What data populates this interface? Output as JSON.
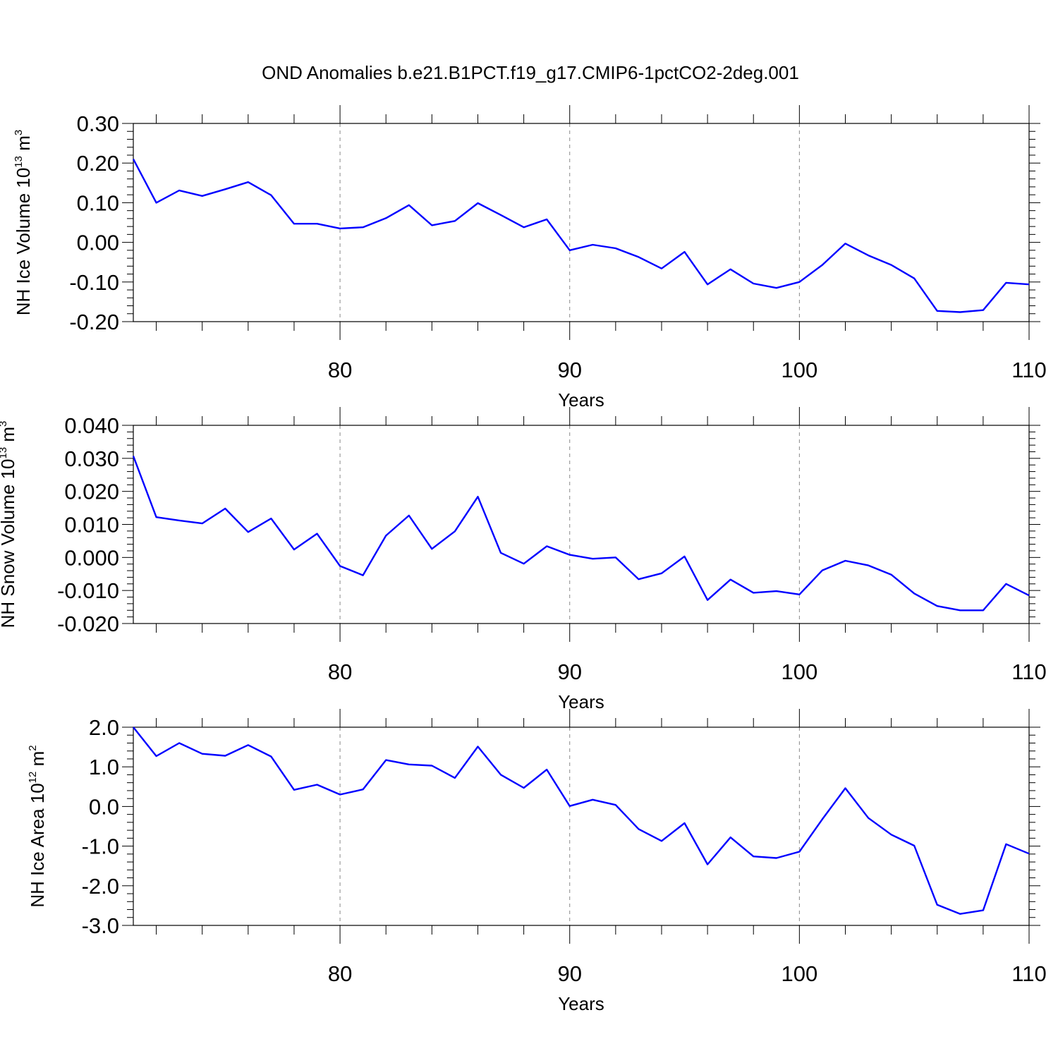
{
  "title": "OND Anomalies b.e21.B1PCT.f19_g17.CMIP6-1pctCO2-2deg.001",
  "colors": {
    "line": "#0000ff",
    "axis": "#000000",
    "grid": "#888888"
  },
  "chart_data": [
    {
      "type": "line",
      "xlabel": "Years",
      "ylabel": {
        "text": "NH Ice Volume 10",
        "exp": "13",
        "unit": " m",
        "unit_exp": "3"
      },
      "xlim": [
        71,
        110
      ],
      "ylim": [
        -0.2,
        0.3
      ],
      "xticks": [
        80,
        90,
        100,
        110
      ],
      "yticks": [
        "0.30",
        "0.20",
        "0.10",
        "0.00",
        "-0.10",
        "-0.20"
      ],
      "ytick_values": [
        0.3,
        0.2,
        0.1,
        0.0,
        -0.1,
        -0.2
      ],
      "grid_x": [
        80,
        90,
        100
      ],
      "series": [
        {
          "name": "NH Ice Volume",
          "x": [
            71,
            72,
            73,
            74,
            75,
            76,
            77,
            78,
            79,
            80,
            81,
            82,
            83,
            84,
            85,
            86,
            87,
            88,
            89,
            90,
            91,
            92,
            93,
            94,
            95,
            96,
            97,
            98,
            99,
            100,
            101,
            102,
            103,
            104,
            105,
            106,
            107,
            108,
            109,
            110
          ],
          "values": [
            0.21,
            0.1,
            0.131,
            0.117,
            0.134,
            0.152,
            0.119,
            0.047,
            0.047,
            0.035,
            0.038,
            0.061,
            0.094,
            0.043,
            0.054,
            0.099,
            0.069,
            0.038,
            0.058,
            -0.02,
            -0.006,
            -0.015,
            -0.037,
            -0.066,
            -0.024,
            -0.106,
            -0.068,
            -0.104,
            -0.115,
            -0.1,
            -0.057,
            -0.003,
            -0.033,
            -0.057,
            -0.091,
            -0.173,
            -0.176,
            -0.171,
            -0.102,
            -0.106
          ]
        }
      ]
    },
    {
      "type": "line",
      "xlabel": "Years",
      "ylabel": {
        "text": "NH Snow Volume 10",
        "exp": "13",
        "unit": " m",
        "unit_exp": "3"
      },
      "xlim": [
        71,
        110
      ],
      "ylim": [
        -0.02,
        0.04
      ],
      "xticks": [
        80,
        90,
        100,
        110
      ],
      "yticks": [
        "0.040",
        "0.030",
        "0.020",
        "0.010",
        "0.000",
        "-0.010",
        "-0.020"
      ],
      "ytick_values": [
        0.04,
        0.03,
        0.02,
        0.01,
        0.0,
        -0.01,
        -0.02
      ],
      "grid_x": [
        80,
        90,
        100
      ],
      "series": [
        {
          "name": "NH Snow Volume",
          "x": [
            71,
            72,
            73,
            74,
            75,
            76,
            77,
            78,
            79,
            80,
            81,
            82,
            83,
            84,
            85,
            86,
            87,
            88,
            89,
            90,
            91,
            92,
            93,
            94,
            95,
            96,
            97,
            98,
            99,
            100,
            101,
            102,
            103,
            104,
            105,
            106,
            107,
            108,
            109,
            110
          ],
          "values": [
            0.0307,
            0.0122,
            0.0112,
            0.0103,
            0.0148,
            0.0077,
            0.0118,
            0.0024,
            0.0072,
            -0.0026,
            -0.0054,
            0.0066,
            0.0127,
            0.0026,
            0.0079,
            0.0184,
            0.0014,
            -0.0019,
            0.0034,
            0.0008,
            -0.0004,
            0.0,
            -0.0066,
            -0.0048,
            0.0003,
            -0.0129,
            -0.0067,
            -0.0107,
            -0.0102,
            -0.0112,
            -0.0039,
            -0.001,
            -0.0024,
            -0.0052,
            -0.0109,
            -0.0147,
            -0.016,
            -0.016,
            -0.008,
            -0.0115
          ]
        }
      ]
    },
    {
      "type": "line",
      "xlabel": "Years",
      "ylabel": {
        "text": "NH Ice Area 10",
        "exp": "12",
        "unit": " m",
        "unit_exp": "2"
      },
      "xlim": [
        71,
        110
      ],
      "ylim": [
        -3.0,
        2.0
      ],
      "xticks": [
        80,
        90,
        100,
        110
      ],
      "yticks": [
        "2.0",
        "1.0",
        "0.0",
        "-1.0",
        "-2.0",
        "-3.0"
      ],
      "ytick_values": [
        2.0,
        1.0,
        0.0,
        -1.0,
        -2.0,
        -3.0
      ],
      "grid_x": [
        80,
        90,
        100
      ],
      "series": [
        {
          "name": "NH Ice Area",
          "x": [
            71,
            72,
            73,
            74,
            75,
            76,
            77,
            78,
            79,
            80,
            81,
            82,
            83,
            84,
            85,
            86,
            87,
            88,
            89,
            90,
            91,
            92,
            93,
            94,
            95,
            96,
            97,
            98,
            99,
            100,
            101,
            102,
            103,
            104,
            105,
            106,
            107,
            108,
            109,
            110
          ],
          "values": [
            2.0,
            1.27,
            1.6,
            1.33,
            1.28,
            1.55,
            1.26,
            0.42,
            0.55,
            0.3,
            0.43,
            1.17,
            1.06,
            1.03,
            0.72,
            1.51,
            0.8,
            0.47,
            0.93,
            0.01,
            0.17,
            0.04,
            -0.57,
            -0.87,
            -0.42,
            -1.46,
            -0.78,
            -1.26,
            -1.3,
            -1.14,
            -0.32,
            0.46,
            -0.29,
            -0.71,
            -0.99,
            -2.48,
            -2.71,
            -2.62,
            -0.95,
            -1.19
          ]
        }
      ]
    }
  ]
}
